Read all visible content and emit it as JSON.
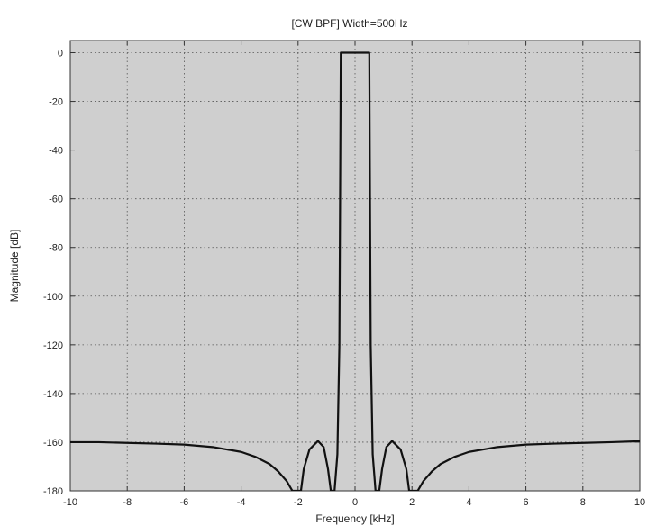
{
  "chart_data": {
    "type": "line",
    "title": "[CW BPF]  Width=500Hz",
    "xlabel": "Frequency [kHz]",
    "ylabel": "Magnitude [dB]",
    "xlim": [
      -10,
      10
    ],
    "ylim": [
      -180,
      5
    ],
    "xticks": [
      -10,
      -8,
      -6,
      -4,
      -2,
      0,
      2,
      4,
      6,
      8,
      10
    ],
    "yticks": [
      0,
      -20,
      -40,
      -60,
      -80,
      -100,
      -120,
      -140,
      -160,
      -180
    ],
    "grid": true,
    "background_color": "#cfcfcf",
    "line_color": "#111111",
    "series": [
      {
        "values": [
          [
            -10,
            -160
          ],
          [
            -9,
            -160
          ],
          [
            -8,
            -160.3
          ],
          [
            -7,
            -160.6
          ],
          [
            -6,
            -161
          ],
          [
            -5,
            -162
          ],
          [
            -4.5,
            -163
          ],
          [
            -4,
            -164
          ],
          [
            -3.5,
            -166
          ],
          [
            -3,
            -169
          ],
          [
            -2.7,
            -172
          ],
          [
            -2.4,
            -176
          ],
          [
            -2.2,
            -180
          ],
          [
            -1.9,
            -180
          ],
          [
            -1.8,
            -171
          ],
          [
            -1.6,
            -163
          ],
          [
            -1.3,
            -159.5
          ],
          [
            -1.1,
            -162
          ],
          [
            -0.95,
            -171
          ],
          [
            -0.85,
            -180
          ],
          [
            -0.72,
            -180
          ],
          [
            -0.62,
            -165
          ],
          [
            -0.55,
            -120
          ],
          [
            -0.5,
            0
          ],
          [
            0.5,
            0
          ],
          [
            0.55,
            -120
          ],
          [
            0.62,
            -165
          ],
          [
            0.72,
            -180
          ],
          [
            0.85,
            -180
          ],
          [
            0.95,
            -171
          ],
          [
            1.1,
            -162
          ],
          [
            1.3,
            -159.5
          ],
          [
            1.6,
            -163
          ],
          [
            1.8,
            -171
          ],
          [
            1.9,
            -180
          ],
          [
            2.2,
            -180
          ],
          [
            2.4,
            -176
          ],
          [
            2.7,
            -172
          ],
          [
            3,
            -169
          ],
          [
            3.5,
            -166
          ],
          [
            4,
            -164
          ],
          [
            4.5,
            -163
          ],
          [
            5,
            -162
          ],
          [
            6,
            -161
          ],
          [
            7,
            -160.6
          ],
          [
            8,
            -160.3
          ],
          [
            9,
            -160
          ],
          [
            10,
            -159.6
          ]
        ]
      }
    ]
  }
}
